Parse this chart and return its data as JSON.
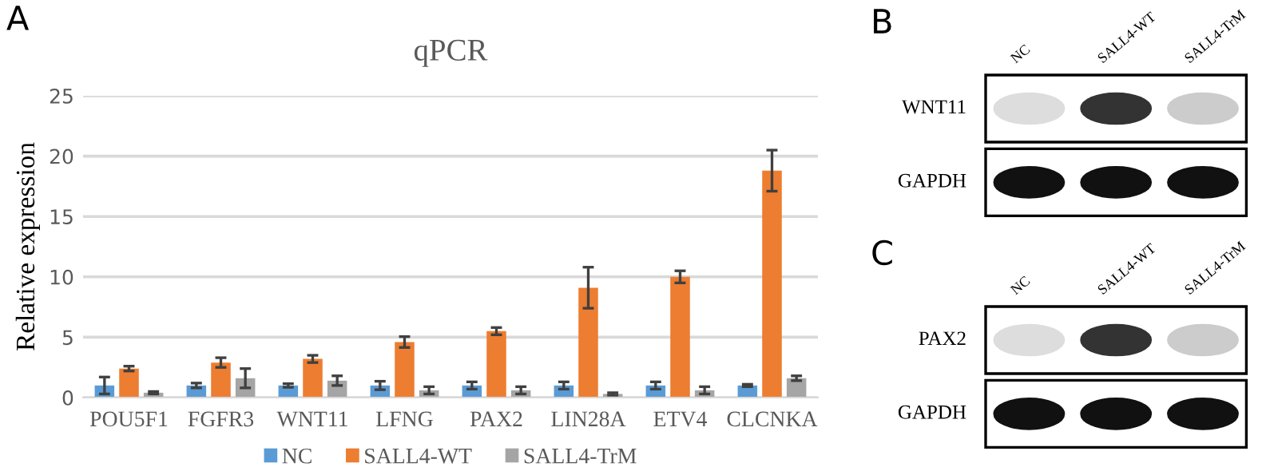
{
  "chart_data": [
    {
      "type": "bar",
      "title": "qPCR",
      "ylabel": "Relative expression",
      "annotations": [
        "A"
      ],
      "categories": [
        "POU5F1",
        "FGFR3",
        "WNT11",
        "LFNG",
        "PAX2",
        "LIN28A",
        "ETV4",
        "CLCNKA"
      ],
      "series": [
        {
          "name": "NC",
          "color": "#5b9bd5",
          "values": [
            1.0,
            1.0,
            1.0,
            1.0,
            1.0,
            1.0,
            1.0,
            1.0
          ],
          "errors": [
            0.7,
            0.2,
            0.15,
            0.35,
            0.3,
            0.3,
            0.3,
            0.1
          ]
        },
        {
          "name": "SALL4-WT",
          "color": "#ed7d31",
          "values": [
            2.4,
            2.9,
            3.2,
            4.6,
            5.5,
            9.1,
            10.0,
            18.8
          ],
          "errors": [
            0.2,
            0.4,
            0.3,
            0.45,
            0.3,
            1.7,
            0.5,
            1.7
          ]
        },
        {
          "name": "SALL4-TrM",
          "color": "#a5a5a5",
          "values": [
            0.4,
            1.6,
            1.4,
            0.6,
            0.6,
            0.3,
            0.6,
            1.6
          ],
          "errors": [
            0.1,
            0.8,
            0.4,
            0.3,
            0.3,
            0.1,
            0.3,
            0.2
          ]
        }
      ],
      "ylim": [
        0,
        25
      ],
      "yticks": [
        0,
        5,
        10,
        15,
        20,
        25
      ],
      "grid": "y",
      "legend": "bottom"
    },
    {
      "type": "other",
      "annotations": [
        "B"
      ],
      "categories": [
        "NC",
        "SALL4-WT",
        "SALL4-TrM"
      ],
      "y_categories": [
        "WNT11",
        "GAPDH"
      ]
    },
    {
      "type": "other",
      "annotations": [
        "C"
      ],
      "categories": [
        "NC",
        "SALL4-WT",
        "SALL4-TrM"
      ],
      "y_categories": [
        "PAX2",
        "GAPDH"
      ]
    }
  ]
}
